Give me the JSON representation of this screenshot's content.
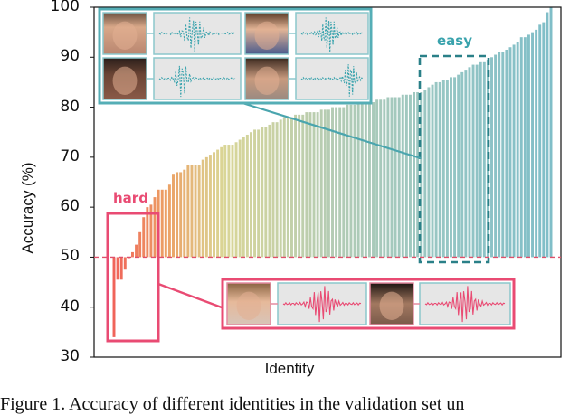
{
  "chart_data": {
    "type": "bar",
    "title": "",
    "xlabel": "Identity",
    "ylabel": "Accuracy (%)",
    "ylim": [
      30,
      100
    ],
    "yticks": [
      30,
      40,
      50,
      60,
      70,
      80,
      90,
      100
    ],
    "grid": false,
    "reference_line": {
      "y": 50,
      "style": "dashed",
      "color": "#e0506a"
    },
    "annotations": [
      {
        "text": "hard",
        "color": "#e94b73",
        "box": "solid",
        "region": "lowest-accuracy identities"
      },
      {
        "text": "easy",
        "color": "#3aa3ad",
        "box": "dashed",
        "region": "high-accuracy identities"
      }
    ],
    "sorted": "ascending",
    "values": [
      34,
      45.5,
      45.5,
      47.5,
      49.8,
      51,
      52.5,
      55,
      58,
      60,
      60.5,
      62,
      63.5,
      63.5,
      63.5,
      64.5,
      66.5,
      67,
      67,
      67.5,
      68.5,
      68.5,
      68.5,
      68.5,
      69.5,
      70,
      70.5,
      71,
      71.5,
      72,
      72.5,
      72.5,
      72.5,
      73,
      73.5,
      74,
      74.5,
      75,
      75.5,
      75.5,
      76,
      76,
      76.5,
      77,
      77,
      77.5,
      78,
      78,
      78,
      78.5,
      78.5,
      78.5,
      79,
      79,
      79,
      79,
      79.5,
      79.5,
      79.5,
      80,
      80,
      80,
      80,
      80.5,
      80.5,
      80.5,
      81,
      81,
      81,
      81,
      81,
      81.5,
      81.5,
      81.5,
      82,
      82,
      82,
      82,
      82.5,
      82.5,
      82.5,
      83,
      83,
      83,
      83.5,
      84,
      84.5,
      85,
      85,
      85.5,
      85.5,
      86,
      86,
      86.5,
      87,
      87.5,
      88,
      88.5,
      88.5,
      89,
      89,
      89.5,
      90,
      90.5,
      91,
      91,
      91.5,
      92,
      92.5,
      93,
      94,
      94,
      94.5,
      95,
      95.5,
      96.5,
      97,
      99,
      100
    ]
  },
  "axis": {
    "yticks": [
      "100",
      "90",
      "80",
      "70",
      "60",
      "50",
      "40",
      "30"
    ],
    "ylabel": "Accuracy (%)",
    "xlabel": "Identity"
  },
  "labels": {
    "hard": "hard",
    "easy": "easy"
  },
  "colors": {
    "hard": "#e94b73",
    "easy": "#3aa3ad",
    "easy_dark": "#2a8088",
    "ref_line": "#e0506a"
  },
  "caption": "Figure 1. Accuracy of different identities in the validation set un"
}
